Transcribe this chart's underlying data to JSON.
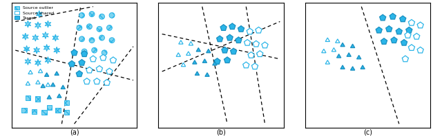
{
  "subplot_labels": [
    "(a)",
    "(b)",
    "(c)"
  ],
  "legend_items": [
    "Source outlier",
    "Source shared",
    "Target"
  ],
  "colors": {
    "source_outlier_fill": "#7dd4f0",
    "source_outlier_edge": "#2bb5e8",
    "source_shared_fill": "white",
    "source_shared_edge": "#2bb5e8",
    "target_fill": "#2bb5e8",
    "target_edge": "#1a8fc0"
  }
}
